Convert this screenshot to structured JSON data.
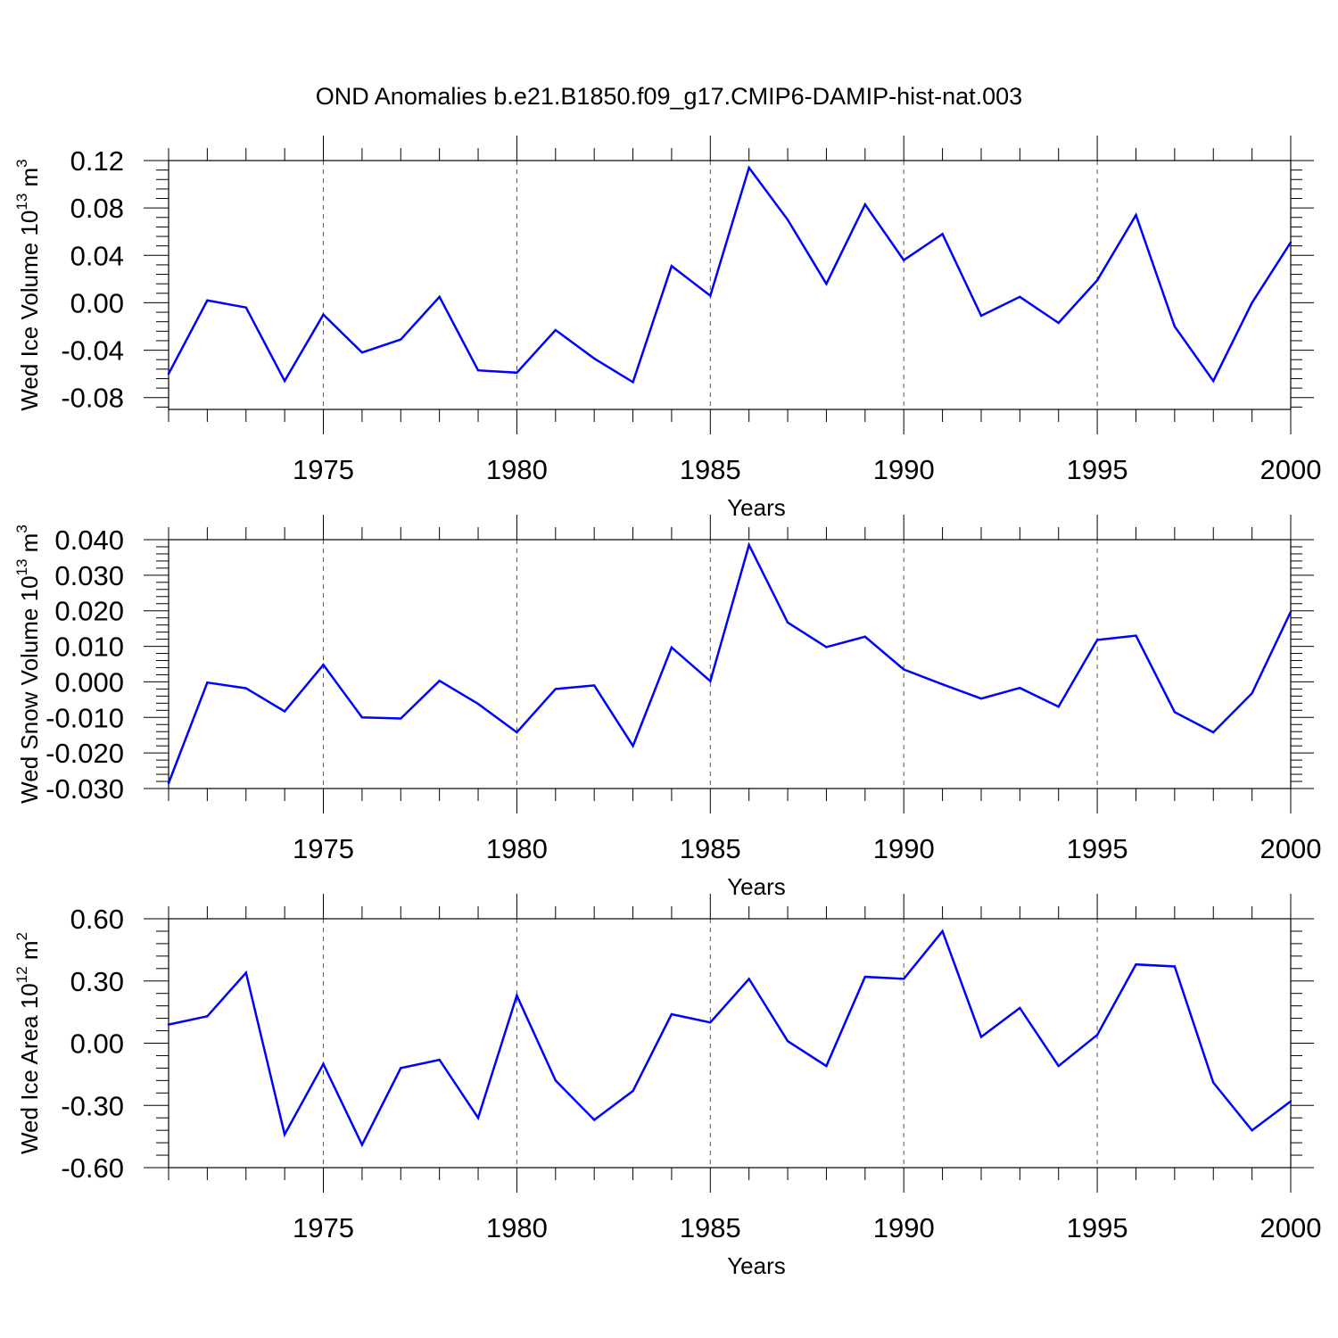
{
  "title": "OND Anomalies b.e21.B1850.f09_g17.CMIP6-DAMIP-hist-nat.003",
  "colors": {
    "line": "#0000ff",
    "axis": "#000000",
    "grid": "#555555"
  },
  "chart_data": [
    {
      "type": "line",
      "id": "ice-volume",
      "ylabel": {
        "main": "Wed Ice Volume 10",
        "exp": "13",
        "unit": " m",
        "unit_exp": "3"
      },
      "xlabel": "Years",
      "xlim": [
        1971,
        2000
      ],
      "ylim": [
        -0.09,
        0.12
      ],
      "yticks": [
        -0.08,
        -0.04,
        0.0,
        0.04,
        0.08,
        0.12
      ],
      "yticklabels": [
        "-0.08",
        "-0.04",
        "0.00",
        "0.04",
        "0.08",
        "0.12"
      ],
      "xticks": [
        1975,
        1980,
        1985,
        1990,
        1995,
        2000
      ],
      "xticklabels": [
        "1975",
        "1980",
        "1985",
        "1990",
        "1995",
        "2000"
      ],
      "grid": "vertical-dashed",
      "x": [
        1971,
        1972,
        1973,
        1974,
        1975,
        1976,
        1977,
        1978,
        1979,
        1980,
        1981,
        1982,
        1983,
        1984,
        1985,
        1986,
        1987,
        1988,
        1989,
        1990,
        1991,
        1992,
        1993,
        1994,
        1995,
        1996,
        1997,
        1998,
        1999,
        2000
      ],
      "values": [
        -0.06,
        0.002,
        -0.004,
        -0.066,
        -0.01,
        -0.042,
        -0.031,
        0.005,
        -0.057,
        -0.059,
        -0.023,
        -0.047,
        -0.067,
        0.031,
        0.006,
        0.114,
        0.07,
        0.016,
        0.083,
        0.036,
        0.058,
        -0.011,
        0.005,
        -0.017,
        0.019,
        0.074,
        -0.02,
        -0.066,
        0.0,
        0.051
      ]
    },
    {
      "type": "line",
      "id": "snow-volume",
      "ylabel": {
        "main": "Wed Snow Volume 10",
        "exp": "13",
        "unit": " m",
        "unit_exp": "3"
      },
      "xlabel": "Years",
      "xlim": [
        1971,
        2000
      ],
      "ylim": [
        -0.03,
        0.04
      ],
      "yticks": [
        -0.03,
        -0.02,
        -0.01,
        0.0,
        0.01,
        0.02,
        0.03,
        0.04
      ],
      "yticklabels": [
        "-0.030",
        "-0.020",
        "-0.010",
        "0.000",
        "0.010",
        "0.020",
        "0.030",
        "0.040"
      ],
      "xticks": [
        1975,
        1980,
        1985,
        1990,
        1995,
        2000
      ],
      "xticklabels": [
        "1975",
        "1980",
        "1985",
        "1990",
        "1995",
        "2000"
      ],
      "grid": "vertical-dashed",
      "x": [
        1971,
        1972,
        1973,
        1974,
        1975,
        1976,
        1977,
        1978,
        1979,
        1980,
        1981,
        1982,
        1983,
        1984,
        1985,
        1986,
        1987,
        1988,
        1989,
        1990,
        1991,
        1992,
        1993,
        1994,
        1995,
        1996,
        1997,
        1998,
        1999,
        2000
      ],
      "values": [
        -0.0285,
        -0.0002,
        -0.0018,
        -0.0083,
        0.0048,
        -0.01,
        -0.0103,
        0.0003,
        -0.0062,
        -0.0142,
        -0.002,
        -0.001,
        -0.018,
        0.0097,
        0.0002,
        0.0385,
        0.0167,
        0.0098,
        0.0127,
        0.0035,
        -0.0007,
        -0.0047,
        -0.0017,
        -0.007,
        0.0118,
        0.013,
        -0.0085,
        -0.0142,
        -0.0032,
        0.0197
      ]
    },
    {
      "type": "line",
      "id": "ice-area",
      "ylabel": {
        "main": "Wed Ice Area 10",
        "exp": "12",
        "unit": " m",
        "unit_exp": "2"
      },
      "xlabel": "Years",
      "xlim": [
        1971,
        2000
      ],
      "ylim": [
        -0.6,
        0.6
      ],
      "yticks": [
        -0.6,
        -0.3,
        0.0,
        0.3,
        0.6
      ],
      "yticklabels": [
        "-0.60",
        "-0.30",
        "0.00",
        "0.30",
        "0.60"
      ],
      "xticks": [
        1975,
        1980,
        1985,
        1990,
        1995,
        2000
      ],
      "xticklabels": [
        "1975",
        "1980",
        "1985",
        "1990",
        "1995",
        "2000"
      ],
      "grid": "vertical-dashed",
      "x": [
        1971,
        1972,
        1973,
        1974,
        1975,
        1976,
        1977,
        1978,
        1979,
        1980,
        1981,
        1982,
        1983,
        1984,
        1985,
        1986,
        1987,
        1988,
        1989,
        1990,
        1991,
        1992,
        1993,
        1994,
        1995,
        1996,
        1997,
        1998,
        1999,
        2000
      ],
      "values": [
        0.09,
        0.13,
        0.34,
        -0.44,
        -0.1,
        -0.49,
        -0.12,
        -0.08,
        -0.36,
        0.23,
        -0.18,
        -0.37,
        -0.23,
        0.14,
        0.1,
        0.31,
        0.01,
        -0.11,
        0.32,
        0.31,
        0.54,
        0.03,
        0.17,
        -0.11,
        0.04,
        0.38,
        0.37,
        -0.19,
        -0.42,
        -0.28
      ]
    }
  ]
}
